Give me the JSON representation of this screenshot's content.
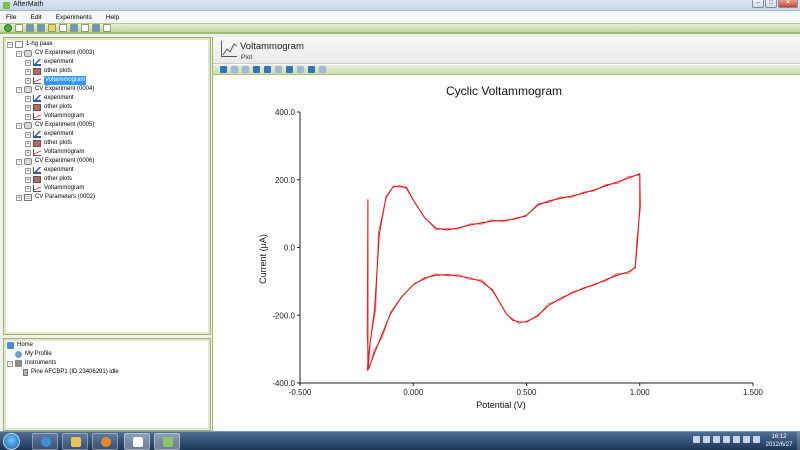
{
  "window": {
    "title": "AfterMath"
  },
  "menu": [
    "File",
    "Edit",
    "Experiments",
    "Help"
  ],
  "tree": {
    "root": "1-hg paax",
    "experiments": [
      {
        "label": "CV Experiment (0003)",
        "children": [
          "experiment",
          "other plots",
          "Voltammogram"
        ]
      },
      {
        "label": "CV Experiment (0004)",
        "children": [
          "experiment",
          "other plots",
          "Voltammogram"
        ]
      },
      {
        "label": "CV Experiment (0005)",
        "children": [
          "experiment",
          "other plots",
          "Voltammogram"
        ]
      },
      {
        "label": "CV Experiment (0006)",
        "children": [
          "experiment",
          "other plots",
          "Voltammogram"
        ]
      }
    ],
    "params": "CV Parameters (0002)"
  },
  "home_panel": {
    "home": "Home",
    "profile": "My Profile",
    "instruments": "Instruments",
    "device": "Pine AFCBP1 (ID 23406291) idle"
  },
  "content": {
    "title": "Voltammogram",
    "subtitle": "Plot"
  },
  "taskbar": {
    "time": "16:12",
    "date": "2012/6/27"
  },
  "colors": {
    "trace": "#e0191b",
    "accent": "#9fb36c"
  },
  "chart_data": {
    "type": "line",
    "title": "Cyclic Voltammogram",
    "xlabel": "Potential (V)",
    "ylabel": "Current (μA)",
    "xlim": [
      -0.5,
      1.5
    ],
    "ylim": [
      -400,
      400
    ],
    "xticks": [
      "-0.500",
      "0.000",
      "0.500",
      "1.000",
      "1.500"
    ],
    "yticks": [
      "400.0",
      "200.0",
      "0.0",
      "-200.0",
      "-400.0"
    ],
    "grid": false,
    "series": [
      {
        "x": [
          -0.2,
          -0.19,
          -0.17,
          -0.15,
          -0.12,
          -0.09,
          -0.06,
          -0.03,
          0.0,
          0.05,
          0.1,
          0.15,
          0.2,
          0.25,
          0.3,
          0.35,
          0.4,
          0.45,
          0.5,
          0.55,
          0.6,
          0.65,
          0.7,
          0.75,
          0.8,
          0.85,
          0.9,
          0.95,
          1.0,
          1.0,
          0.99,
          0.98,
          0.95,
          0.9,
          0.85,
          0.8,
          0.75,
          0.7,
          0.65,
          0.6,
          0.55,
          0.5,
          0.47,
          0.44,
          0.41,
          0.38,
          0.35,
          0.3,
          0.25,
          0.2,
          0.15,
          0.1,
          0.05,
          0.0,
          -0.05,
          -0.1,
          -0.14,
          -0.17,
          -0.19,
          -0.2,
          -0.2,
          -0.2
        ],
        "y": [
          -360,
          -280,
          -180,
          40,
          150,
          178,
          182,
          175,
          140,
          88,
          57,
          52,
          58,
          66,
          73,
          78,
          80,
          84,
          95,
          125,
          138,
          145,
          152,
          160,
          170,
          182,
          193,
          205,
          218,
          120,
          20,
          -60,
          -72,
          -82,
          -95,
          -110,
          -120,
          -135,
          -150,
          -170,
          -200,
          -220,
          -220,
          -215,
          -195,
          -160,
          -125,
          -100,
          -90,
          -84,
          -80,
          -82,
          -90,
          -110,
          -145,
          -195,
          -260,
          -310,
          -345,
          -362,
          -250,
          140
        ]
      }
    ]
  }
}
